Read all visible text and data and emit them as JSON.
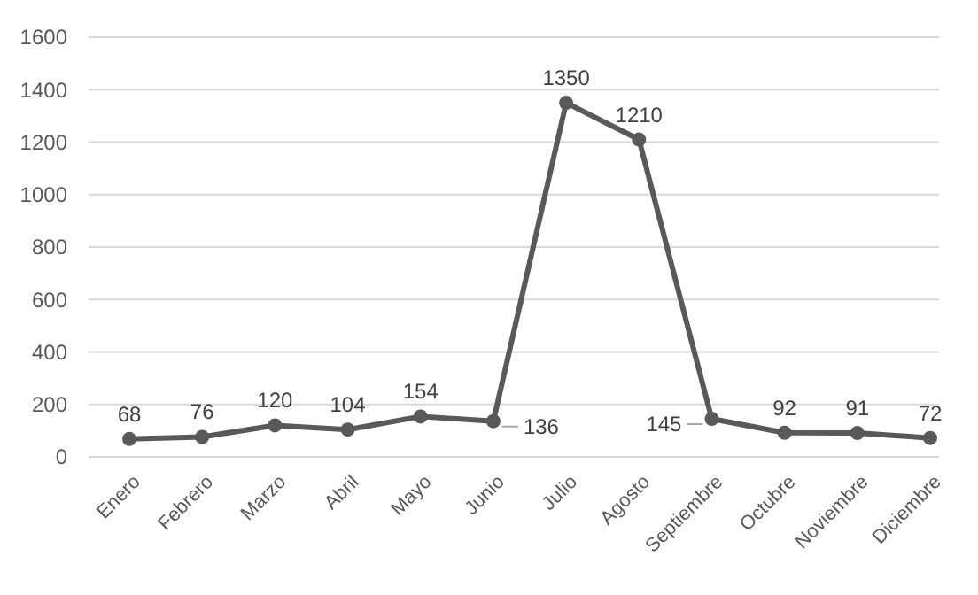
{
  "chart_data": {
    "type": "line",
    "categories": [
      "Enero",
      "Febrero",
      "Marzo",
      "Abril",
      "Mayo",
      "Junio",
      "Julio",
      "Agosto",
      "Septiembre",
      "Octubre",
      "Noviembre",
      "Diciembre"
    ],
    "series": [
      {
        "color": "#595959",
        "values": [
          68,
          76,
          120,
          104,
          154,
          136,
          1350,
          1210,
          145,
          92,
          91,
          72
        ]
      }
    ],
    "ylim": [
      0,
      1600
    ],
    "yticks": [
      0,
      200,
      400,
      600,
      800,
      1000,
      1200,
      1400,
      1600
    ],
    "grid": "y",
    "marker": "circle",
    "line_style": "solid",
    "data_labels": true
  }
}
